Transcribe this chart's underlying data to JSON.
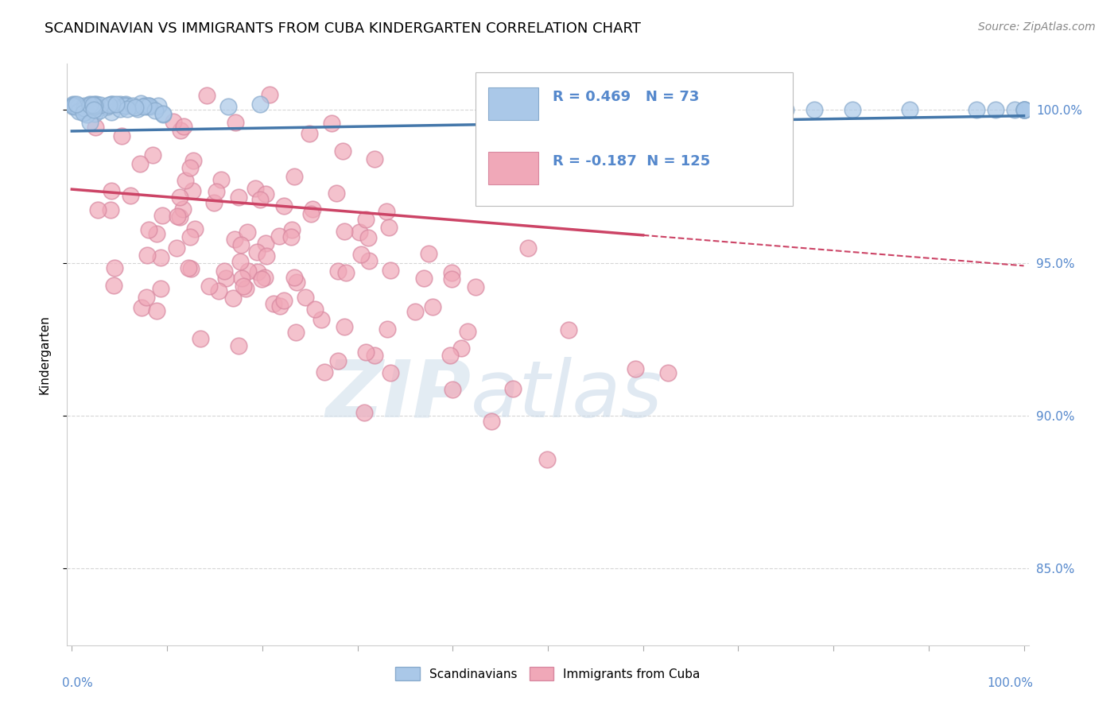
{
  "title": "SCANDINAVIAN VS IMMIGRANTS FROM CUBA KINDERGARTEN CORRELATION CHART",
  "source": "Source: ZipAtlas.com",
  "ylabel": "Kindergarten",
  "legend_entries": [
    "Scandinavians",
    "Immigrants from Cuba"
  ],
  "r_blue": 0.469,
  "n_blue": 73,
  "r_pink": -0.187,
  "n_pink": 125,
  "blue_color": "#aac8e8",
  "pink_color": "#f0a8b8",
  "blue_edge_color": "#88aacc",
  "pink_edge_color": "#d888a0",
  "blue_line_color": "#4477aa",
  "pink_line_color": "#cc4466",
  "right_ytick_labels": [
    "85.0%",
    "90.0%",
    "95.0%",
    "100.0%"
  ],
  "right_ytick_values": [
    0.85,
    0.9,
    0.95,
    1.0
  ],
  "watermark_zip": "ZIP",
  "watermark_atlas": "atlas",
  "background_color": "#ffffff",
  "title_fontsize": 13,
  "axis_label_color": "#5588CC",
  "grid_color": "#cccccc",
  "ylim_min": 0.825,
  "ylim_max": 1.015,
  "xlim_min": -0.005,
  "xlim_max": 1.005
}
